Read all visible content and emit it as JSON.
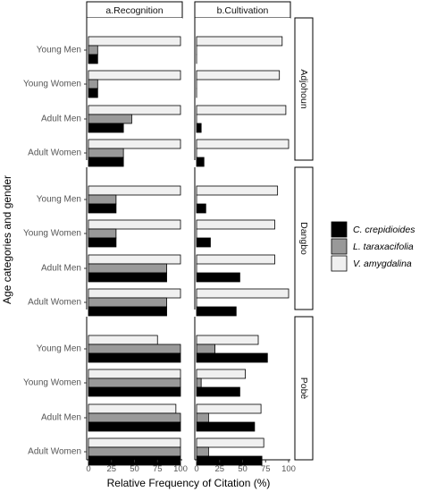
{
  "chart_data": {
    "type": "bar",
    "orientation": "horizontal",
    "xlabel": "Relative Frequency of Citation (%)",
    "ylabel": "Age categories and gender",
    "xlim": [
      0,
      100
    ],
    "x_ticks": [
      "0",
      "25",
      "50",
      "75",
      "100"
    ],
    "columns": [
      "a.Recognition",
      "b.Cultivation"
    ],
    "rows": [
      "Adjohoun",
      "Dangbo",
      "Pobè"
    ],
    "categories": [
      "Young Men",
      "Young Women",
      "Adult Men",
      "Adult Women"
    ],
    "legend": {
      "placement": "right",
      "entries": [
        "C. crepidioides",
        "L. taraxacifolia",
        "V. amygdalina"
      ]
    },
    "series_colors": [
      "#000000",
      "#999999",
      "#f0f0f0"
    ],
    "grid": false,
    "data": {
      "Adjohoun": {
        "a.Recognition": {
          "C. crepidioides": [
            10,
            10,
            38,
            38
          ],
          "L. taraxacifolia": [
            10,
            10,
            47,
            38
          ],
          "V. amygdalina": [
            100,
            100,
            100,
            100
          ]
        },
        "b.Cultivation": {
          "C. crepidioides": [
            0,
            0,
            5,
            8
          ],
          "L. taraxacifolia": [
            0,
            0,
            0,
            0
          ],
          "V. amygdalina": [
            93,
            90,
            97,
            100
          ]
        }
      },
      "Dangbo": {
        "a.Recognition": {
          "C. crepidioides": [
            30,
            30,
            85,
            85
          ],
          "L. taraxacifolia": [
            30,
            30,
            85,
            85
          ],
          "V. amygdalina": [
            100,
            100,
            100,
            100
          ]
        },
        "b.Cultivation": {
          "C. crepidioides": [
            10,
            15,
            47,
            43
          ],
          "L. taraxacifolia": [
            0,
            0,
            0,
            0
          ],
          "V. amygdalina": [
            88,
            85,
            85,
            100
          ]
        }
      },
      "Pobè": {
        "a.Recognition": {
          "C. crepidioides": [
            100,
            100,
            100,
            100
          ],
          "L. taraxacifolia": [
            100,
            100,
            100,
            100
          ],
          "V. amygdalina": [
            75,
            100,
            95,
            100
          ]
        },
        "b.Cultivation": {
          "C. crepidioides": [
            77,
            47,
            63,
            71
          ],
          "L. taraxacifolia": [
            20,
            5,
            13,
            13
          ],
          "V. amygdalina": [
            67,
            53,
            70,
            73
          ]
        }
      }
    }
  }
}
